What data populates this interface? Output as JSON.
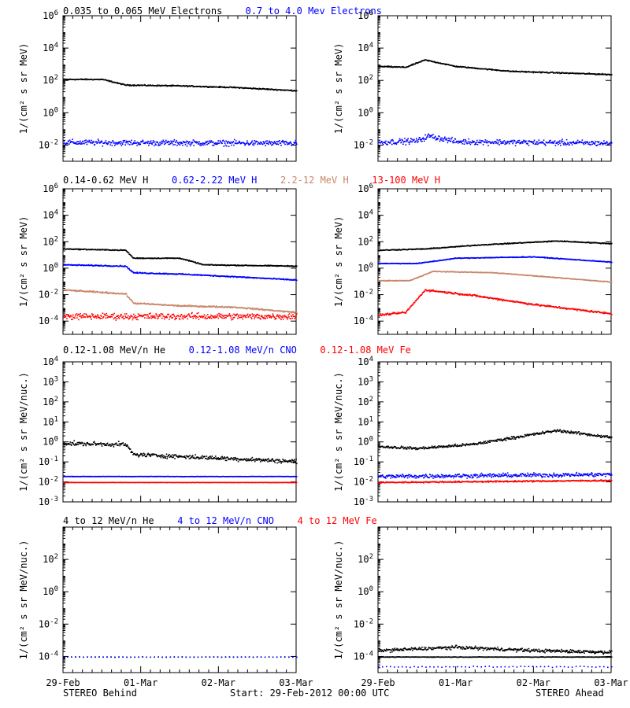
{
  "footer": {
    "left": "STEREO Behind",
    "center": "Start: 29-Feb-2012 00:00 UTC",
    "right": "STEREO Ahead"
  },
  "x_axis": {
    "ticks": [
      "29-Feb",
      "01-Mar",
      "02-Mar",
      "03-Mar"
    ],
    "range_days": [
      0,
      3
    ]
  },
  "colors": {
    "black": "#000000",
    "blue": "#0000ff",
    "tan": "#c8866a",
    "red": "#ff0000"
  },
  "chart_data": [
    {
      "panel": "row1-behind",
      "type": "scatter",
      "yscale": "log",
      "ylabel": "1/(cm² s sr MeV)",
      "ylim_exp": [
        -3,
        6
      ],
      "yticks_exp": [
        -2,
        0,
        2,
        4,
        6
      ],
      "legend": [
        {
          "text": "0.035 to 0.065 MeV Electrons",
          "color": "black"
        },
        {
          "text": "0.7 to 4.0 Mev Electrons",
          "color": "blue"
        }
      ],
      "series": [
        {
          "color": "black",
          "points": [
            [
              0,
              2.1
            ],
            [
              0.5,
              2.1
            ],
            [
              0.8,
              1.75
            ],
            [
              1.5,
              1.7
            ],
            [
              2.2,
              1.6
            ],
            [
              3,
              1.4
            ]
          ],
          "scatter": 0.05
        },
        {
          "color": "blue",
          "points": [
            [
              0,
              -1.8
            ],
            [
              3,
              -1.85
            ]
          ],
          "scatter": 0.25
        }
      ]
    },
    {
      "panel": "row1-ahead",
      "type": "scatter",
      "yscale": "log",
      "ylabel": "1/(cm² s sr MeV)",
      "ylim_exp": [
        -3,
        6
      ],
      "yticks_exp": [
        -2,
        0,
        2,
        4,
        6
      ],
      "legend": [],
      "series": [
        {
          "color": "black",
          "points": [
            [
              0,
              2.9
            ],
            [
              0.35,
              2.85
            ],
            [
              0.6,
              3.3
            ],
            [
              1.0,
              2.9
            ],
            [
              1.7,
              2.6
            ],
            [
              3,
              2.4
            ]
          ],
          "scatter": 0.05
        },
        {
          "color": "blue",
          "points": [
            [
              0,
              -1.8
            ],
            [
              0.5,
              -1.7
            ],
            [
              0.65,
              -1.4
            ],
            [
              1.0,
              -1.75
            ],
            [
              3,
              -1.85
            ]
          ],
          "scatter": 0.25
        }
      ]
    },
    {
      "panel": "row2-behind",
      "type": "scatter",
      "yscale": "log",
      "ylabel": "1/(cm² s sr MeV)",
      "ylim_exp": [
        -5,
        6
      ],
      "yticks_exp": [
        -4,
        -2,
        0,
        2,
        4,
        6
      ],
      "legend": [
        {
          "text": "0.14-0.62 MeV H",
          "color": "black"
        },
        {
          "text": "0.62-2.22 MeV H",
          "color": "blue"
        },
        {
          "text": "2.2-12 MeV H",
          "color": "tan"
        },
        {
          "text": "13-100 MeV H",
          "color": "red"
        }
      ],
      "series": [
        {
          "color": "black",
          "points": [
            [
              0,
              1.5
            ],
            [
              0.8,
              1.4
            ],
            [
              0.9,
              0.8
            ],
            [
              1.5,
              0.8
            ],
            [
              1.8,
              0.3
            ],
            [
              3,
              0.2
            ]
          ],
          "scatter": 0.05
        },
        {
          "color": "blue",
          "points": [
            [
              0,
              0.3
            ],
            [
              0.8,
              0.2
            ],
            [
              0.9,
              -0.3
            ],
            [
              1.5,
              -0.4
            ],
            [
              2.2,
              -0.6
            ],
            [
              3,
              -0.85
            ]
          ],
          "scatter": 0.06
        },
        {
          "color": "tan",
          "points": [
            [
              0,
              -1.6
            ],
            [
              0.8,
              -1.9
            ],
            [
              0.9,
              -2.6
            ],
            [
              1.5,
              -2.8
            ],
            [
              2.2,
              -2.9
            ],
            [
              3,
              -3.3
            ]
          ],
          "scatter": 0.08
        },
        {
          "color": "red",
          "points": [
            [
              0,
              -3.6
            ],
            [
              3,
              -3.6
            ]
          ],
          "scatter": 0.35
        }
      ]
    },
    {
      "panel": "row2-ahead",
      "type": "scatter",
      "yscale": "log",
      "ylabel": "1/(cm² s sr MeV)",
      "ylim_exp": [
        -5,
        6
      ],
      "yticks_exp": [
        -4,
        -2,
        0,
        2,
        4,
        6
      ],
      "legend": [],
      "series": [
        {
          "color": "black",
          "points": [
            [
              0,
              1.4
            ],
            [
              0.6,
              1.5
            ],
            [
              1.3,
              1.8
            ],
            [
              2.3,
              2.1
            ],
            [
              3,
              1.9
            ]
          ],
          "scatter": 0.05
        },
        {
          "color": "blue",
          "points": [
            [
              0,
              0.4
            ],
            [
              0.5,
              0.4
            ],
            [
              1.0,
              0.8
            ],
            [
              2.0,
              0.9
            ],
            [
              3,
              0.5
            ]
          ],
          "scatter": 0.04
        },
        {
          "color": "tan",
          "points": [
            [
              0,
              -0.9
            ],
            [
              0.4,
              -0.9
            ],
            [
              0.7,
              -0.2
            ],
            [
              1.5,
              -0.3
            ],
            [
              3,
              -1.0
            ]
          ],
          "scatter": 0.04
        },
        {
          "color": "red",
          "points": [
            [
              0,
              -3.5
            ],
            [
              0.35,
              -3.3
            ],
            [
              0.6,
              -1.6
            ],
            [
              1.2,
              -2.0
            ],
            [
              2.0,
              -2.7
            ],
            [
              3,
              -3.4
            ]
          ],
          "scatter": 0.1
        }
      ]
    },
    {
      "panel": "row3-behind",
      "type": "scatter",
      "yscale": "log",
      "ylabel": "1/(cm² s sr MeV/nuc.)",
      "ylim_exp": [
        -3,
        4
      ],
      "yticks_exp": [
        -3,
        -2,
        -1,
        0,
        1,
        2,
        3,
        4
      ],
      "legend": [
        {
          "text": "0.12-1.08 MeV/n He",
          "color": "black"
        },
        {
          "text": "0.12-1.08 MeV/n CNO",
          "color": "blue"
        },
        {
          "text": "0.12-1.08 MeV Fe",
          "color": "red"
        }
      ],
      "series": [
        {
          "color": "black",
          "points": [
            [
              0,
              -0.05
            ],
            [
              0.8,
              -0.1
            ],
            [
              0.9,
              -0.6
            ],
            [
              1.5,
              -0.7
            ],
            [
              3,
              -0.95
            ]
          ],
          "scatter": 0.15
        },
        {
          "color": "blue",
          "points": [
            [
              0,
              -1.7
            ],
            [
              3,
              -1.7
            ]
          ],
          "scatter": 0.01
        },
        {
          "color": "red",
          "points": [
            [
              0,
              -2.0
            ],
            [
              3,
              -2.0
            ]
          ],
          "scatter": 0.01
        }
      ]
    },
    {
      "panel": "row3-ahead",
      "type": "scatter",
      "yscale": "log",
      "ylabel": "1/(cm² s sr MeV/nuc.)",
      "ylim_exp": [
        -3,
        4
      ],
      "yticks_exp": [
        -3,
        -2,
        -1,
        0,
        1,
        2,
        3,
        4
      ],
      "legend": [],
      "series": [
        {
          "color": "black",
          "points": [
            [
              0,
              -0.2
            ],
            [
              0.5,
              -0.3
            ],
            [
              1.2,
              -0.1
            ],
            [
              2.3,
              0.6
            ],
            [
              3,
              0.25
            ]
          ],
          "scatter": 0.1
        },
        {
          "color": "blue",
          "points": [
            [
              0,
              -1.7
            ],
            [
              3,
              -1.6
            ]
          ],
          "scatter": 0.15
        },
        {
          "color": "red",
          "points": [
            [
              0,
              -2.0
            ],
            [
              3,
              -1.9
            ]
          ],
          "scatter": 0.05
        }
      ]
    },
    {
      "panel": "row4-behind",
      "type": "scatter",
      "yscale": "log",
      "ylabel": "1/(cm² s sr MeV/nuc.)",
      "ylim_exp": [
        -5,
        4
      ],
      "yticks_exp": [
        -4,
        -2,
        0,
        2
      ],
      "legend": [
        {
          "text": "4 to 12 MeV/n He",
          "color": "black"
        },
        {
          "text": "4 to 12 MeV/n CNO",
          "color": "blue"
        },
        {
          "text": "4 to 12 MeV Fe",
          "color": "red"
        }
      ],
      "series": [
        {
          "color": "black",
          "points": [
            [
              0,
              -4.0
            ],
            [
              3,
              -4.0
            ]
          ],
          "scatter": 0.02,
          "sparse": true
        },
        {
          "color": "blue",
          "points": [
            [
              0,
              -4.0
            ],
            [
              3,
              -4.0
            ]
          ],
          "scatter": 0.01,
          "sparse": true
        }
      ]
    },
    {
      "panel": "row4-ahead",
      "type": "scatter",
      "yscale": "log",
      "ylabel": "1/(cm² s sr MeV/nuc.)",
      "ylim_exp": [
        -5,
        4
      ],
      "yticks_exp": [
        -4,
        -2,
        0,
        2
      ],
      "legend": [],
      "series": [
        {
          "color": "black",
          "points": [
            [
              0,
              -3.6
            ],
            [
              1,
              -3.4
            ],
            [
              2,
              -3.6
            ],
            [
              3,
              -3.7
            ]
          ],
          "scatter": 0.15
        },
        {
          "color": "black",
          "points": [
            [
              0,
              -4.0
            ],
            [
              3,
              -4.0
            ]
          ],
          "scatter": 0.02
        },
        {
          "color": "blue",
          "points": [
            [
              0,
              -4.6
            ],
            [
              3,
              -4.6
            ]
          ],
          "scatter": 0.05,
          "sparse": true
        }
      ]
    }
  ]
}
